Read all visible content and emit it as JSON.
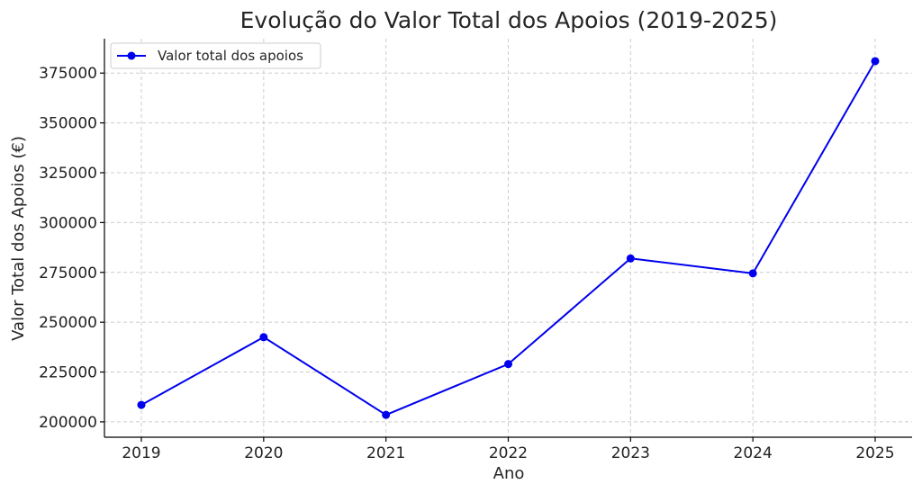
{
  "chart_data": {
    "type": "line",
    "title": "Evolução do Valor Total dos Apoios (2019-2025)",
    "xlabel": "Ano",
    "ylabel": "Valor Total dos Apoios (€)",
    "x": [
      "2019",
      "2020",
      "2021",
      "2022",
      "2023",
      "2024",
      "2025"
    ],
    "series": [
      {
        "name": "Valor total dos apoios",
        "color": "#0000ee",
        "marker": "circle",
        "values": [
          208500,
          242500,
          203500,
          229000,
          282000,
          274500,
          381000
        ]
      }
    ],
    "ylim": [
      195000,
      390000
    ],
    "yticks": [
      200000,
      225000,
      250000,
      275000,
      300000,
      325000,
      350000,
      375000
    ],
    "ytick_labels": [
      "200000",
      "225000",
      "250000",
      "275000",
      "300000",
      "325000",
      "350000",
      "375000"
    ],
    "grid": true,
    "legend_position": "top-left"
  }
}
